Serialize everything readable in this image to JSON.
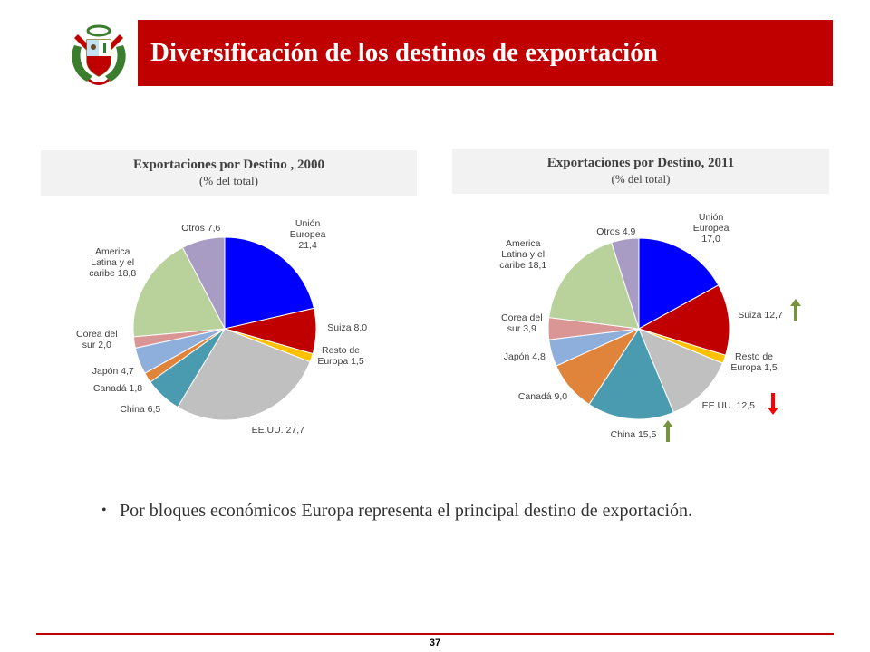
{
  "slide": {
    "title": "Diversificación de los destinos de exportación",
    "bullet": "Por bloques económicos Europa representa el principal destino de exportación.",
    "page_number": "37"
  },
  "colors": {
    "title_bar": "#c00000",
    "up_arrow": "#77933c",
    "down_arrow": "#ff0000"
  },
  "chart_data": [
    {
      "type": "pie",
      "title": "Exportaciones por Destino , 2000",
      "subtitle": "(% del total)",
      "slices": [
        {
          "label": "Unión Europea",
          "value": 21.4,
          "value_text": "21,4",
          "color": "#0000ff"
        },
        {
          "label": "Suiza",
          "value": 8.0,
          "value_text": "8,0",
          "color": "#c00000"
        },
        {
          "label": "Resto de Europa",
          "value": 1.5,
          "value_text": "1,5",
          "color": "#ffc000"
        },
        {
          "label": "EE.UU.",
          "value": 27.7,
          "value_text": "27,7",
          "color": "#c0c0c0"
        },
        {
          "label": "China",
          "value": 6.5,
          "value_text": "6,5",
          "color": "#4a9ab0"
        },
        {
          "label": "Canadá",
          "value": 1.8,
          "value_text": "1,8",
          "color": "#e0843c"
        },
        {
          "label": "Japón",
          "value": 4.7,
          "value_text": "4,7",
          "color": "#8eaedc"
        },
        {
          "label": "Corea del sur",
          "value": 2.0,
          "value_text": "2,0",
          "color": "#d99694"
        },
        {
          "label": "America Latina y el caribe",
          "value": 18.8,
          "value_text": "18,8",
          "color": "#b9d19a"
        },
        {
          "label": "Otros",
          "value": 7.6,
          "value_text": "7,6",
          "color": "#a89cc4"
        }
      ]
    },
    {
      "type": "pie",
      "title": "Exportaciones por Destino, 2011",
      "subtitle": "(% del total)",
      "slices": [
        {
          "label": "Unión Europea",
          "value": 17.0,
          "value_text": "17,0",
          "color": "#0000ff"
        },
        {
          "label": "Suiza",
          "value": 12.7,
          "value_text": "12,7",
          "color": "#c00000",
          "trend": "up"
        },
        {
          "label": "Resto de Europa",
          "value": 1.5,
          "value_text": "1,5",
          "color": "#ffc000"
        },
        {
          "label": "EE.UU.",
          "value": 12.5,
          "value_text": "12,5",
          "color": "#c0c0c0",
          "trend": "down"
        },
        {
          "label": "China",
          "value": 15.5,
          "value_text": "15,5",
          "color": "#4a9ab0",
          "trend": "up"
        },
        {
          "label": "Canadá",
          "value": 9.0,
          "value_text": "9,0",
          "color": "#e0843c"
        },
        {
          "label": "Japón",
          "value": 4.8,
          "value_text": "4,8",
          "color": "#8eaedc"
        },
        {
          "label": "Corea del sur",
          "value": 3.9,
          "value_text": "3,9",
          "color": "#d99694"
        },
        {
          "label": "America Latina y el caribe",
          "value": 18.1,
          "value_text": "18,1",
          "color": "#b9d19a"
        },
        {
          "label": "Otros",
          "value": 4.9,
          "value_text": "4,9",
          "color": "#a89cc4"
        }
      ]
    }
  ]
}
